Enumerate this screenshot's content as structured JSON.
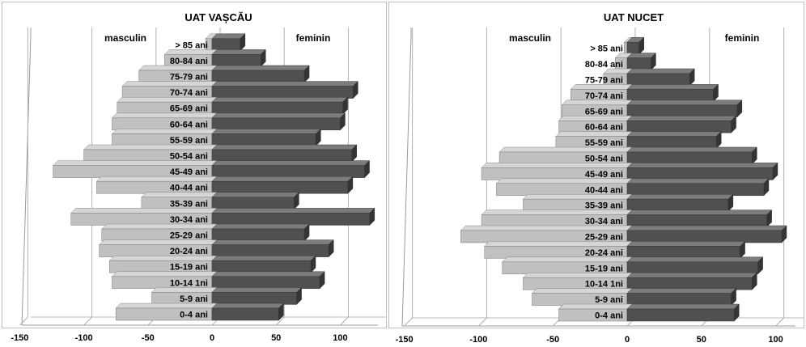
{
  "chart_data": [
    {
      "type": "bar",
      "orientation": "horizontal",
      "style": "population-pyramid-3d",
      "title": "UAT VAȘCĂU",
      "left_label": "masculin",
      "right_label": "feminin",
      "categories": [
        "0-4 ani",
        "5-9 ani",
        "10-14 1ni",
        "15-19 ani",
        "20-24 ani",
        "25-29 ani",
        "30-34 ani",
        "35-39 ani",
        "40-44 ani",
        "45-49 ani",
        "50-54 ani",
        "55-59 ani",
        "60-64 ani",
        "65-69 ani",
        "70-74 ani",
        "75-79 ani",
        "80-84 ani",
        "> 85 ani"
      ],
      "series": [
        {
          "name": "masculin",
          "values": [
            -75,
            -47,
            -78,
            -80,
            -88,
            -86,
            -110,
            -55,
            -90,
            -124,
            -100,
            -78,
            -78,
            -74,
            -70,
            -57,
            -37,
            -5
          ],
          "color": "#c0c0c0"
        },
        {
          "name": "feminin",
          "values": [
            52,
            66,
            84,
            77,
            91,
            72,
            123,
            64,
            106,
            119,
            109,
            81,
            100,
            102,
            110,
            72,
            38,
            22
          ],
          "color": "#505050"
        }
      ],
      "xlim": [
        -150,
        125
      ],
      "xticks": [
        -150,
        -100,
        -50,
        0,
        50,
        100
      ],
      "tick_labels": [
        "-150",
        "-100",
        "-50",
        "0",
        "50",
        "100"
      ],
      "grid": true
    },
    {
      "type": "bar",
      "orientation": "horizontal",
      "style": "population-pyramid-3d",
      "title": "UAT  NUCET",
      "left_label": "masculin",
      "right_label": "feminin",
      "categories": [
        "0-4 ani",
        "5-9 ani",
        "10-14 1ni",
        "15-19 ani",
        "20-24 ani",
        "25-29 ani",
        "30-34 ani",
        "35-39 ani",
        "40-44 ani",
        "45-49 ani",
        "50-54 ani",
        "55-59 ani",
        "60-64 ani",
        "65-69 ani",
        "70-74 ani",
        "75-79 ani",
        "80-84 ani",
        "> 85 ani"
      ],
      "series": [
        {
          "name": "masculin",
          "values": [
            -46,
            -64,
            -70,
            -84,
            -96,
            -112,
            -98,
            -70,
            -88,
            -98,
            -86,
            -48,
            -46,
            -44,
            -38,
            -16,
            -8,
            -2
          ],
          "color": "#c0c0c0"
        },
        {
          "name": "feminin",
          "values": [
            72,
            70,
            84,
            88,
            76,
            104,
            94,
            68,
            92,
            98,
            84,
            60,
            70,
            74,
            58,
            42,
            16,
            8
          ],
          "color": "#505050"
        }
      ],
      "xlim": [
        -150,
        110
      ],
      "xticks": [
        -150,
        -100,
        -50,
        0,
        50,
        100
      ],
      "tick_labels": [
        "-150",
        "-100",
        "-50",
        "0",
        "50",
        "100"
      ],
      "grid": true
    }
  ]
}
